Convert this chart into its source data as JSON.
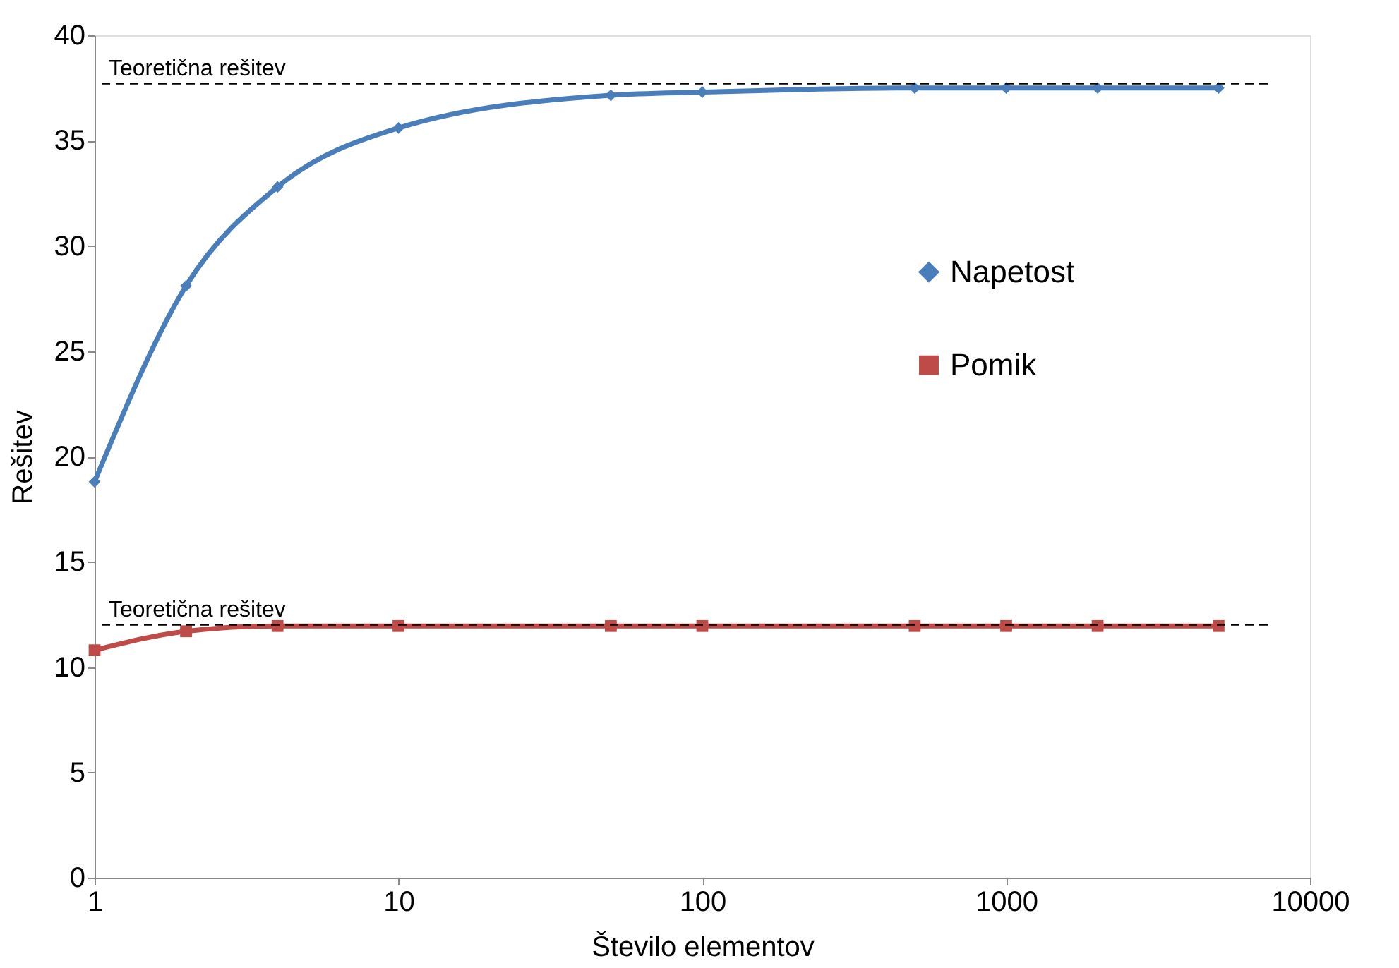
{
  "chart_data": {
    "type": "line",
    "xlabel": "Število elementov",
    "ylabel": "Rešitev",
    "x": [
      1,
      2,
      4,
      10,
      50,
      100,
      500,
      1000,
      2000,
      5000
    ],
    "series": [
      {
        "name": "Napetost",
        "color": "#4a7ebb",
        "marker": "diamond",
        "values": [
          18.8,
          28.1,
          32.8,
          35.6,
          37.15,
          37.3,
          37.5,
          37.5,
          37.5,
          37.5
        ]
      },
      {
        "name": "Pomik",
        "color": "#be4b48",
        "marker": "square",
        "values": [
          10.8,
          11.7,
          11.95,
          11.95,
          11.95,
          11.95,
          11.95,
          11.95,
          11.95,
          11.95
        ]
      }
    ],
    "log": "x",
    "xlim": [
      1,
      10000
    ],
    "xticks": [
      1,
      10,
      100,
      1000,
      10000
    ],
    "ylim": [
      0,
      40
    ],
    "yticks": [
      0,
      5,
      10,
      15,
      20,
      25,
      30,
      35,
      40
    ],
    "ref_lines": [
      {
        "axis": "y",
        "value": 37.7,
        "label": "Teoretična rešitev",
        "color": "#000000",
        "line_style": "dashed"
      },
      {
        "axis": "y",
        "value": 12.0,
        "label": "Teoretična rešitev",
        "color": "#000000",
        "line_style": "dashed"
      }
    ],
    "grid": false,
    "legend": "right",
    "line_style": "solid"
  }
}
